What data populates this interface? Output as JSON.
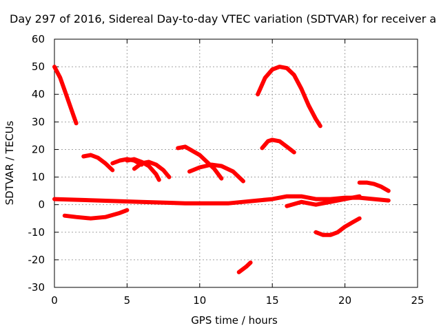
{
  "chart_data": {
    "type": "line",
    "title": "Day 297 of 2016, Sidereal Day-to-day VTEC variation (SDTVAR) for receiver a",
    "xlabel": "GPS time / hours",
    "ylabel": "SDTVAR / TECUs",
    "xlim": [
      0,
      25
    ],
    "ylim": [
      -30,
      60
    ],
    "xticks": [
      0,
      5,
      10,
      15,
      20,
      25
    ],
    "yticks": [
      -30,
      -20,
      -10,
      0,
      10,
      20,
      30,
      40,
      50,
      60
    ],
    "grid": true,
    "color": "#ff0000",
    "series": [
      {
        "name": "s1",
        "x": [
          0,
          0.4,
          0.8,
          1.2,
          1.5
        ],
        "y": [
          50,
          46,
          40,
          34,
          29.5
        ]
      },
      {
        "name": "s2",
        "x": [
          0,
          3,
          6,
          9,
          12,
          14,
          15,
          16,
          17,
          18,
          19,
          20,
          21,
          22,
          23
        ],
        "y": [
          2,
          1.5,
          1,
          0.5,
          0.5,
          1.5,
          2,
          3,
          3,
          2,
          2,
          2.5,
          2.5,
          2,
          1.5
        ]
      },
      {
        "name": "s3",
        "x": [
          0.7,
          1.5,
          2.5,
          3.5,
          4.5,
          5
        ],
        "y": [
          -4,
          -4.5,
          -5,
          -4.5,
          -3,
          -2
        ]
      },
      {
        "name": "s4",
        "x": [
          2,
          2.5,
          3,
          3.5,
          4
        ],
        "y": [
          17.5,
          18,
          17,
          15,
          12.5
        ]
      },
      {
        "name": "s5",
        "x": [
          4,
          4.5,
          5,
          5.5,
          6
        ],
        "y": [
          15,
          16,
          16.5,
          16,
          14.5
        ]
      },
      {
        "name": "s6",
        "x": [
          5.5,
          6,
          6.5,
          7,
          7.5,
          7.9
        ],
        "y": [
          13,
          15,
          15.5,
          14.5,
          12.5,
          10
        ]
      },
      {
        "name": "s7",
        "x": [
          5,
          5.5,
          6,
          6.5,
          7,
          7.2
        ],
        "y": [
          16,
          16.5,
          15.5,
          14,
          11,
          9
        ]
      },
      {
        "name": "s8",
        "x": [
          8.5,
          9,
          10,
          11,
          11.5
        ],
        "y": [
          20.5,
          21,
          18,
          13,
          9.5
        ]
      },
      {
        "name": "s9",
        "x": [
          9.3,
          10,
          10.8,
          11.5,
          12.3,
          13
        ],
        "y": [
          12,
          13.5,
          14.5,
          14,
          12,
          8.5
        ]
      },
      {
        "name": "s10",
        "x": [
          12.7,
          13.2,
          13.5
        ],
        "y": [
          -24.5,
          -22.5,
          -21
        ]
      },
      {
        "name": "s11",
        "x": [
          14,
          14.5,
          15,
          15.5,
          16,
          16.5,
          17,
          17.5,
          18,
          18.3
        ],
        "y": [
          40,
          46,
          49,
          50,
          49.5,
          47,
          42,
          36,
          31,
          28.5
        ]
      },
      {
        "name": "s12",
        "x": [
          14.3,
          14.7,
          15,
          15.5,
          16,
          16.5
        ],
        "y": [
          20.5,
          23,
          23.5,
          23,
          21,
          19
        ]
      },
      {
        "name": "s13",
        "x": [
          16,
          17,
          18,
          19,
          20,
          21
        ],
        "y": [
          -0.5,
          1,
          0,
          1,
          2,
          3
        ]
      },
      {
        "name": "s14",
        "x": [
          18,
          18.5,
          19,
          19.5,
          20,
          20.5,
          21
        ],
        "y": [
          -10,
          -11,
          -11,
          -10,
          -8,
          -6.5,
          -5
        ]
      },
      {
        "name": "s15",
        "x": [
          21,
          21.5,
          22,
          22.5,
          23
        ],
        "y": [
          8,
          8,
          7.5,
          6.5,
          5
        ]
      }
    ]
  }
}
